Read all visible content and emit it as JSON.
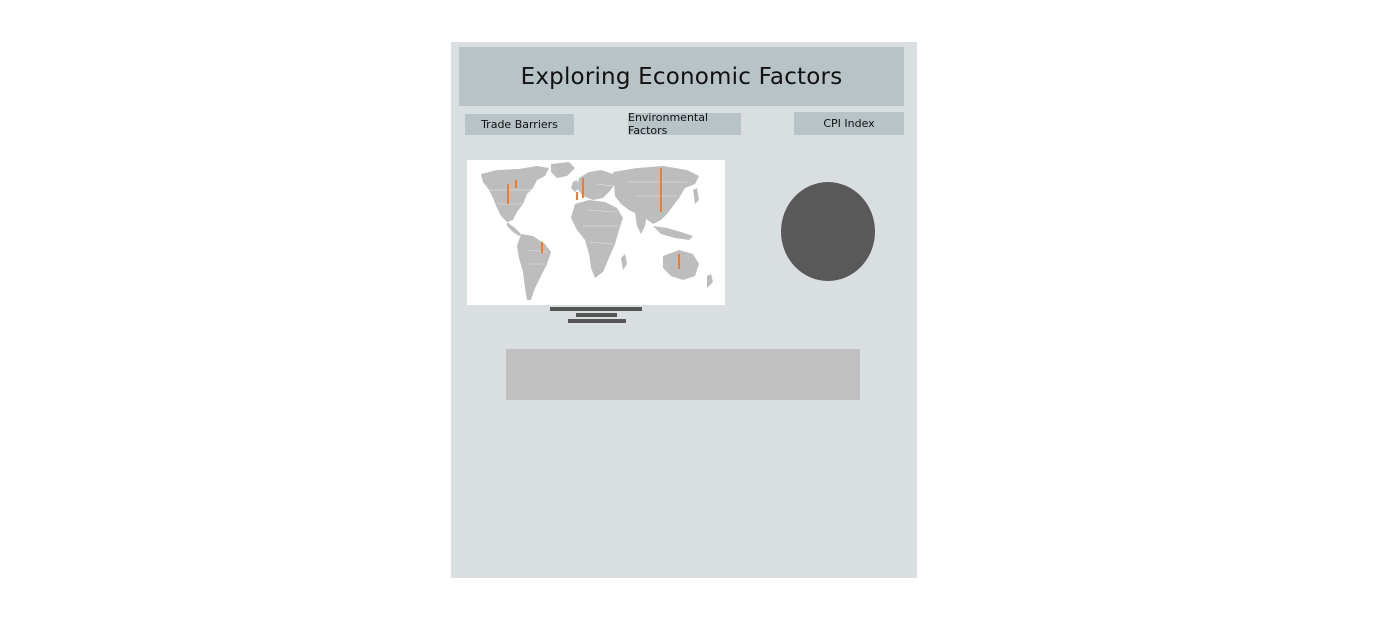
{
  "header": {
    "title": "Exploring Economic Factors"
  },
  "nav": [
    {
      "label": "Trade Barriers"
    },
    {
      "label": "Environmental Factors"
    },
    {
      "label": "CPI Index"
    }
  ],
  "colors": {
    "panel_bg": "#d9dee0",
    "header_bg": "#b8c3c7",
    "land": "#bdbdbd",
    "accent": "#f07d2e",
    "pie": "#595959",
    "placeholder": "#c0c0c0"
  },
  "map": {
    "marker_regions": [
      "North America",
      "North America",
      "Europe",
      "Europe",
      "Asia",
      "South America",
      "Oceania"
    ]
  }
}
